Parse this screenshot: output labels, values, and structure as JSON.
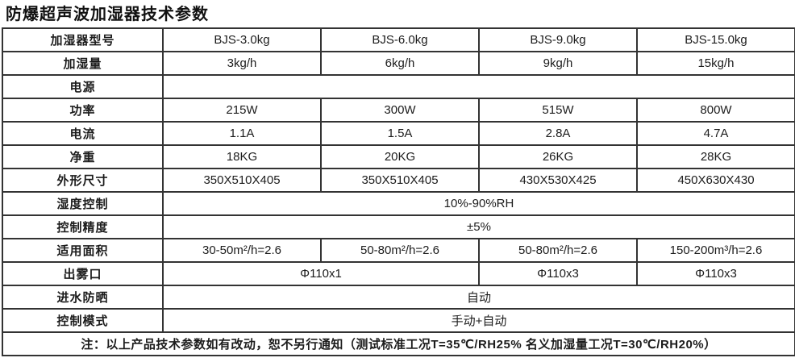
{
  "title": "防爆超声波加湿器技术参数",
  "table": {
    "rows": [
      {
        "label": "加湿器型号",
        "cells": [
          "BJS-3.0kg",
          "BJS-6.0kg",
          "BJS-9.0kg",
          "BJS-15.0kg"
        ]
      },
      {
        "label": "加湿量",
        "cells": [
          "3kg/h",
          "6kg/h",
          "9kg/h",
          "15kg/h"
        ]
      },
      {
        "label": "电源",
        "cells": [
          ""
        ]
      },
      {
        "label": "功率",
        "cells": [
          "215W",
          "300W",
          "515W",
          "800W"
        ]
      },
      {
        "label": "电流",
        "cells": [
          "1.1A",
          "1.5A",
          "2.8A",
          "4.7A"
        ]
      },
      {
        "label": "净重",
        "cells": [
          "18KG",
          "20KG",
          "26KG",
          "28KG"
        ]
      },
      {
        "label": "外形尺寸",
        "cells": [
          "350X510X405",
          "350X510X405",
          "430X530X425",
          "450X630X430"
        ]
      },
      {
        "label": "湿度控制",
        "cells": [
          "10%-90%RH"
        ]
      },
      {
        "label": "控制精度",
        "cells": [
          "±5%"
        ]
      },
      {
        "label": "适用面积",
        "cells": [
          "30-50m²/h=2.6",
          "50-80m²/h=2.6",
          "50-80m²/h=2.6",
          "150-200m³/h=2.6"
        ]
      },
      {
        "label": "出雾口",
        "cells": [
          "Φ110x1",
          "Φ110x3",
          "Φ110x3"
        ]
      },
      {
        "label": "进水防晒",
        "cells": [
          "自动"
        ]
      },
      {
        "label": "控制模式",
        "cells": [
          "手动+自动"
        ]
      }
    ],
    "note": "注：以上产品技术参数如有改动，恕不另行通知（测试标准工况T=35℃/RH25% 名义加湿量工况T=30℃/RH20%）"
  },
  "colors": {
    "border": "#333333",
    "text": "#1c1c1c",
    "background": "#ffffff"
  }
}
